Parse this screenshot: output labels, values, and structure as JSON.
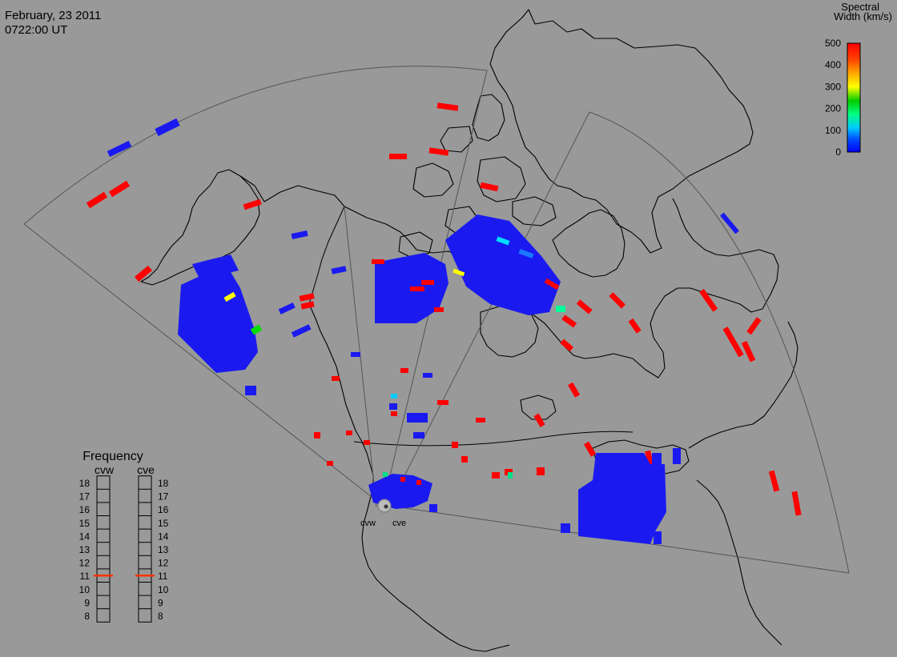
{
  "header": {
    "date": "February, 23 2011",
    "time": "0722:00 UT"
  },
  "colorbar": {
    "title_line1": "Spectral",
    "title_line2": "Width (km/s)",
    "ticks": [
      "500",
      "400",
      "300",
      "200",
      "100",
      "0"
    ],
    "max_value": 500,
    "min_value": 0
  },
  "radars": [
    {
      "code": "cvw",
      "frequency_mhz": 11.0
    },
    {
      "code": "cve",
      "frequency_mhz": 11.0
    }
  ],
  "frequency_panel": {
    "title": "Frequency",
    "scale": [
      "18",
      "17",
      "16",
      "15",
      "14",
      "13",
      "12",
      "11",
      "10",
      "9",
      "8"
    ],
    "min": 8,
    "max": 18
  },
  "colors": {
    "background": "#999999",
    "low": "#0000ff",
    "high": "#ff0000",
    "indicator": "#ff3300"
  }
}
